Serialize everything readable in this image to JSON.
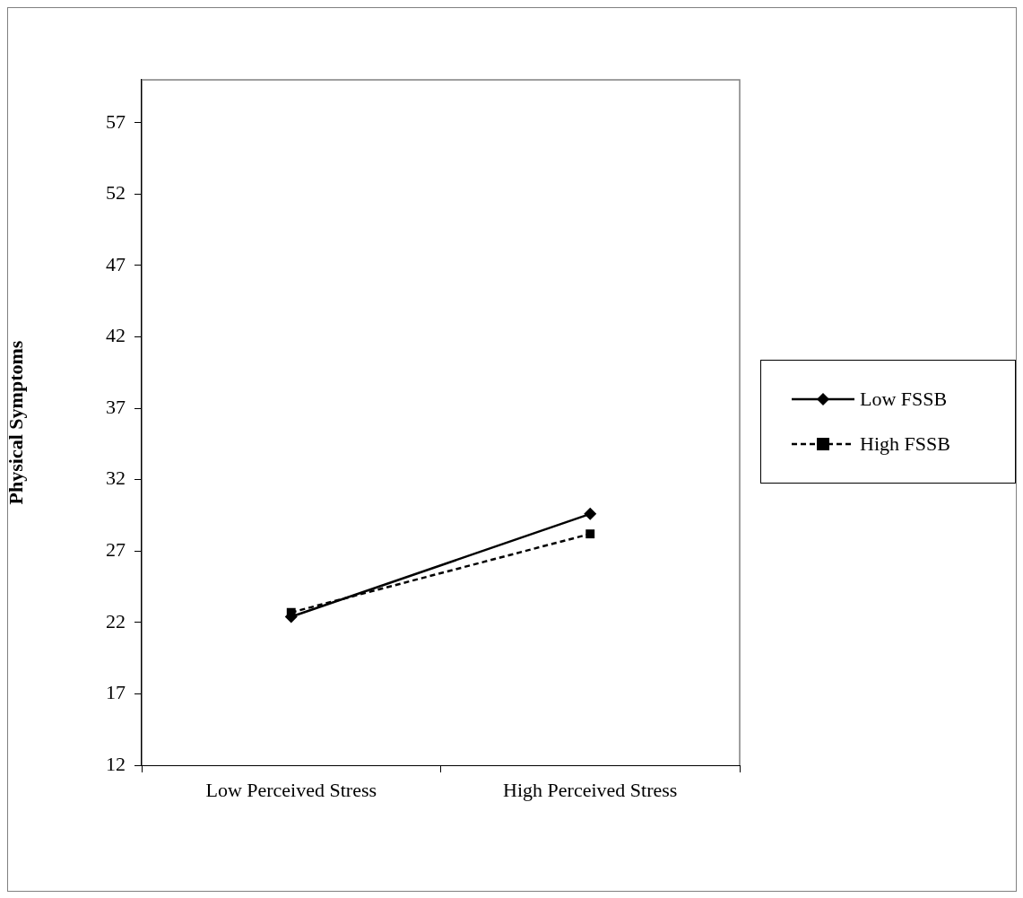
{
  "chart_data": {
    "type": "line",
    "ylabel": "Physical Symptoms",
    "categories": [
      "Low Perceived Stress",
      "High Perceived Stress"
    ],
    "series": [
      {
        "name": "Low FSSB",
        "color": "#000000",
        "values": [
          22.4,
          29.6
        ],
        "marker": "diamond",
        "line_style": "solid"
      },
      {
        "name": "High FSSB",
        "color": "#000000",
        "values": [
          22.7,
          28.2
        ],
        "marker": "square",
        "line_style": "dashed"
      }
    ],
    "ylim": [
      12,
      60
    ],
    "yticks": [
      12,
      17,
      22,
      27,
      32,
      37,
      42,
      47,
      52,
      57
    ],
    "grid": false,
    "legend": "right"
  }
}
